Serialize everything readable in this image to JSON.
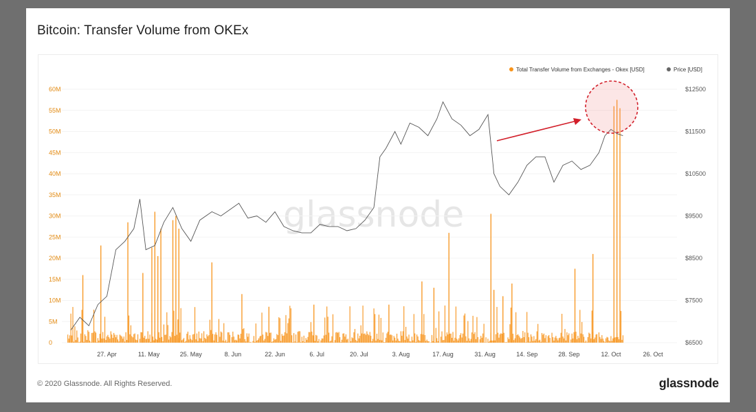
{
  "title": "Bitcoin: Transfer Volume from OKEx",
  "footer": {
    "copyright": "© 2020 Glassnode. All Rights Reserved.",
    "logo": "glassnode"
  },
  "watermark": "glassnode",
  "chart_data": {
    "type": "line",
    "title": "Bitcoin: Transfer Volume from OKEx",
    "x_ticks": [
      "27. Apr",
      "11. May",
      "25. May",
      "8. Jun",
      "22. Jun",
      "6. Jul",
      "20. Jul",
      "3. Aug",
      "17. Aug",
      "31. Aug",
      "14. Sep",
      "28. Sep",
      "12. Oct",
      "26. Oct"
    ],
    "y_left": {
      "ticks": [
        "0",
        "5M",
        "10M",
        "15M",
        "20M",
        "25M",
        "30M",
        "35M",
        "40M",
        "45M",
        "50M",
        "55M",
        "60M"
      ],
      "range": [
        0,
        60000000
      ],
      "color": "#f7931a"
    },
    "y_right": {
      "ticks": [
        "$6500",
        "$7500",
        "$8500",
        "$9500",
        "$10500",
        "$11500",
        "$12500"
      ],
      "range": [
        6500,
        12500
      ],
      "color": "#555555"
    },
    "legend": {
      "position": "top-right",
      "entries": [
        {
          "label": "Total Transfer Volume from Exchanges - Okex [USD]",
          "color": "#f7931a"
        },
        {
          "label": "Price [USD]",
          "color": "#666666"
        }
      ]
    },
    "series": [
      {
        "name": "Total Transfer Volume from Exchanges - Okex [USD]",
        "axis": "left",
        "type": "bar",
        "spikes": [
          {
            "date": "2020-04-19",
            "value": 16000000
          },
          {
            "date": "2020-04-25",
            "value": 23000000
          },
          {
            "date": "2020-05-04",
            "value": 28500000
          },
          {
            "date": "2020-05-09",
            "value": 16500000
          },
          {
            "date": "2020-05-12",
            "value": 22500000
          },
          {
            "date": "2020-05-13",
            "value": 31000000
          },
          {
            "date": "2020-05-14",
            "value": 20500000
          },
          {
            "date": "2020-05-15",
            "value": 27000000
          },
          {
            "date": "2020-05-19",
            "value": 29000000
          },
          {
            "date": "2020-05-20",
            "value": 30000000
          },
          {
            "date": "2020-05-21",
            "value": 27000000
          },
          {
            "date": "2020-06-01",
            "value": 19000000
          },
          {
            "date": "2020-06-11",
            "value": 11500000
          },
          {
            "date": "2020-06-20",
            "value": 8500000
          },
          {
            "date": "2020-07-05",
            "value": 9000000
          },
          {
            "date": "2020-07-30",
            "value": 9000000
          },
          {
            "date": "2020-08-10",
            "value": 14500000
          },
          {
            "date": "2020-08-14",
            "value": 13000000
          },
          {
            "date": "2020-08-19",
            "value": 26000000
          },
          {
            "date": "2020-09-02",
            "value": 30500000
          },
          {
            "date": "2020-09-03",
            "value": 12500000
          },
          {
            "date": "2020-09-06",
            "value": 11000000
          },
          {
            "date": "2020-09-09",
            "value": 14000000
          },
          {
            "date": "2020-09-30",
            "value": 17500000
          },
          {
            "date": "2020-10-06",
            "value": 21000000
          },
          {
            "date": "2020-10-13",
            "value": 56000000
          },
          {
            "date": "2020-10-14",
            "value": 57500000
          },
          {
            "date": "2020-10-15",
            "value": 55500000
          }
        ]
      },
      {
        "name": "Price [USD]",
        "axis": "right",
        "type": "line",
        "points": [
          [
            "2020-04-15",
            6800
          ],
          [
            "2020-04-18",
            7100
          ],
          [
            "2020-04-21",
            6900
          ],
          [
            "2020-04-24",
            7400
          ],
          [
            "2020-04-27",
            7600
          ],
          [
            "2020-04-30",
            8700
          ],
          [
            "2020-05-03",
            8900
          ],
          [
            "2020-05-06",
            9200
          ],
          [
            "2020-05-08",
            9900
          ],
          [
            "2020-05-10",
            8700
          ],
          [
            "2020-05-13",
            8800
          ],
          [
            "2020-05-16",
            9350
          ],
          [
            "2020-05-19",
            9700
          ],
          [
            "2020-05-22",
            9200
          ],
          [
            "2020-05-25",
            8900
          ],
          [
            "2020-05-28",
            9400
          ],
          [
            "2020-06-01",
            9600
          ],
          [
            "2020-06-04",
            9500
          ],
          [
            "2020-06-07",
            9650
          ],
          [
            "2020-06-10",
            9800
          ],
          [
            "2020-06-13",
            9450
          ],
          [
            "2020-06-16",
            9500
          ],
          [
            "2020-06-19",
            9350
          ],
          [
            "2020-06-22",
            9600
          ],
          [
            "2020-06-25",
            9250
          ],
          [
            "2020-06-28",
            9150
          ],
          [
            "2020-07-01",
            9100
          ],
          [
            "2020-07-04",
            9100
          ],
          [
            "2020-07-07",
            9300
          ],
          [
            "2020-07-10",
            9250
          ],
          [
            "2020-07-13",
            9250
          ],
          [
            "2020-07-16",
            9150
          ],
          [
            "2020-07-19",
            9200
          ],
          [
            "2020-07-22",
            9400
          ],
          [
            "2020-07-25",
            9700
          ],
          [
            "2020-07-27",
            10900
          ],
          [
            "2020-07-29",
            11100
          ],
          [
            "2020-08-01",
            11500
          ],
          [
            "2020-08-03",
            11200
          ],
          [
            "2020-08-06",
            11700
          ],
          [
            "2020-08-09",
            11600
          ],
          [
            "2020-08-12",
            11400
          ],
          [
            "2020-08-15",
            11800
          ],
          [
            "2020-08-17",
            12200
          ],
          [
            "2020-08-20",
            11800
          ],
          [
            "2020-08-23",
            11650
          ],
          [
            "2020-08-26",
            11400
          ],
          [
            "2020-08-29",
            11550
          ],
          [
            "2020-09-01",
            11900
          ],
          [
            "2020-09-03",
            10500
          ],
          [
            "2020-09-05",
            10200
          ],
          [
            "2020-09-08",
            10000
          ],
          [
            "2020-09-11",
            10300
          ],
          [
            "2020-09-14",
            10700
          ],
          [
            "2020-09-17",
            10900
          ],
          [
            "2020-09-20",
            10900
          ],
          [
            "2020-09-23",
            10300
          ],
          [
            "2020-09-26",
            10700
          ],
          [
            "2020-09-29",
            10800
          ],
          [
            "2020-10-02",
            10600
          ],
          [
            "2020-10-05",
            10700
          ],
          [
            "2020-10-08",
            11000
          ],
          [
            "2020-10-10",
            11400
          ],
          [
            "2020-10-12",
            11550
          ],
          [
            "2020-10-14",
            11450
          ],
          [
            "2020-10-16",
            11400
          ]
        ]
      }
    ]
  }
}
